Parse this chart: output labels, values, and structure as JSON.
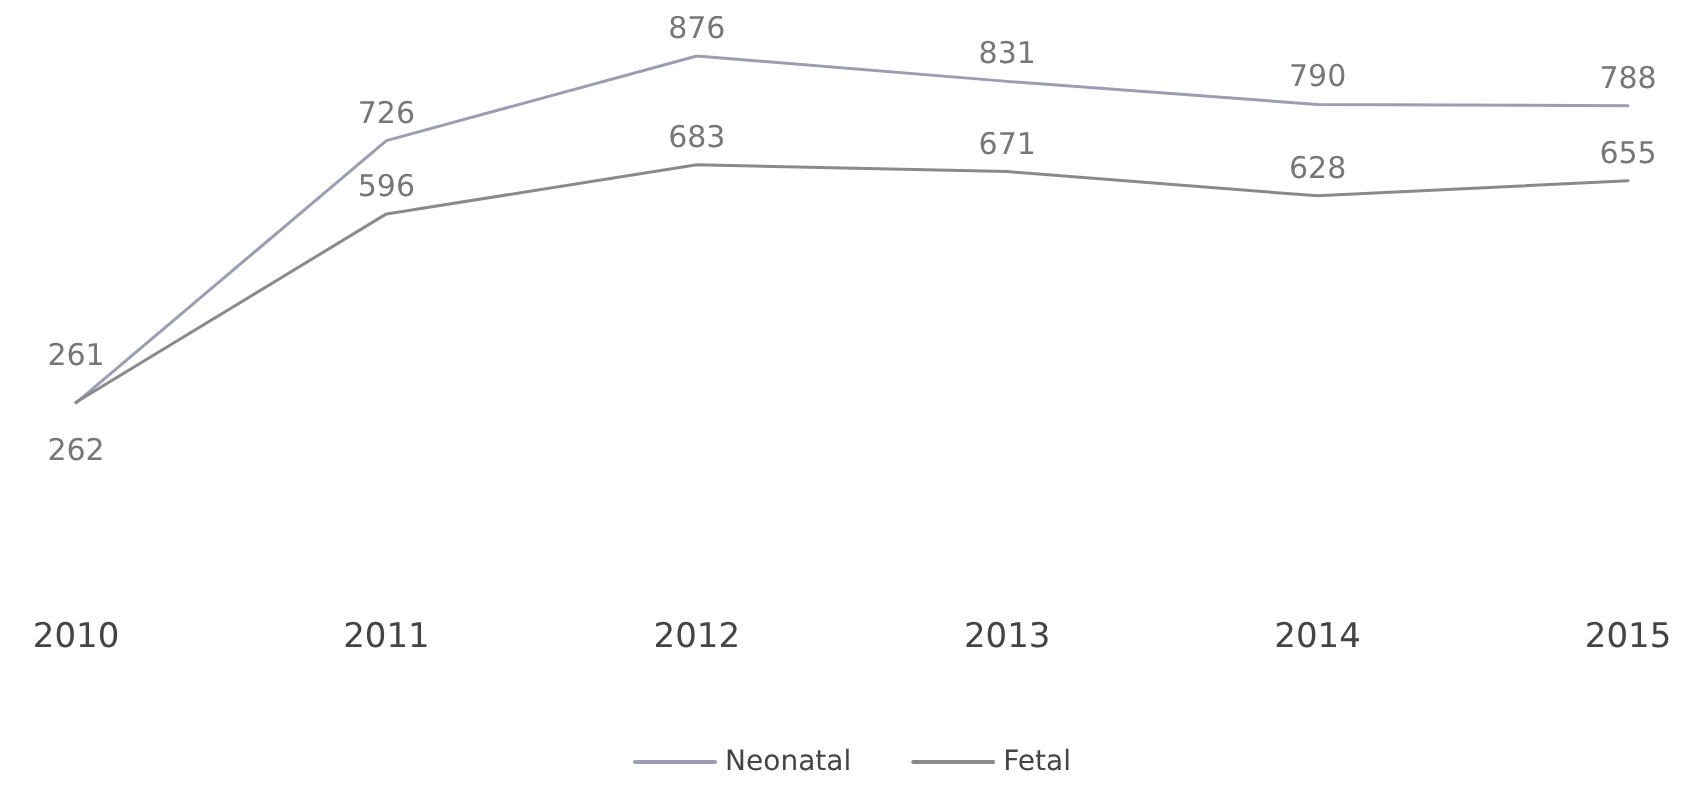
{
  "chart_data": {
    "type": "line",
    "categories": [
      "2010",
      "2011",
      "2012",
      "2013",
      "2014",
      "2015"
    ],
    "series": [
      {
        "name": "Neonatal",
        "color": "#9a9db3",
        "values": [
          261,
          726,
          876,
          831,
          790,
          788
        ]
      },
      {
        "name": "Fetal",
        "color": "#8a8a8a",
        "values": [
          262,
          596,
          683,
          671,
          628,
          655
        ]
      }
    ],
    "data_labels": true,
    "legend": "bottom",
    "grid": false,
    "marker": "none",
    "line_style": "solid"
  }
}
